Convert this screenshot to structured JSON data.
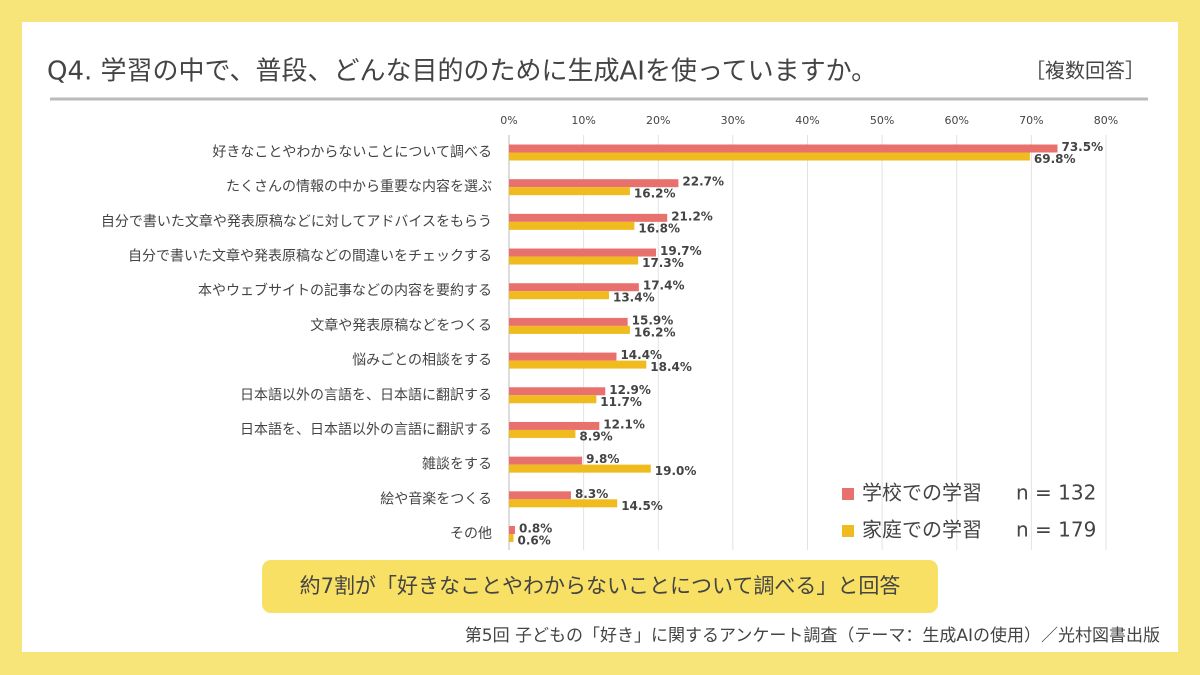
{
  "chart_data": {
    "type": "bar",
    "orientation": "horizontal",
    "title": "Q4. 学習の中で、普段、どんな目的のために生成AIを使っていますか。",
    "subtitle": "［複数回答］",
    "categories": [
      "好きなことやわからないことについて調べる",
      "たくさんの情報の中から重要な内容を選ぶ",
      "自分で書いた文章や発表原稿などに対してアドバイスをもらう",
      "自分で書いた文章や発表原稿などの間違いをチェックする",
      "本やウェブサイトの記事などの内容を要約する",
      "文章や発表原稿などをつくる",
      "悩みごとの相談をする",
      "日本語以外の言語を、日本語に翻訳する",
      "日本語を、日本語以外の言語に翻訳する",
      "雑談をする",
      "絵や音楽をつくる",
      "その他"
    ],
    "series": [
      {
        "name": "学校での学習",
        "sample_size": "n = 132",
        "color": "#e8716d",
        "values": [
          73.5,
          22.7,
          21.2,
          19.7,
          17.4,
          15.9,
          14.4,
          12.9,
          12.1,
          9.8,
          8.3,
          0.8
        ],
        "value_labels": [
          "73.5%",
          "22.7%",
          "21.2%",
          "19.7%",
          "17.4%",
          "15.9%",
          "14.4%",
          "12.9%",
          "12.1%",
          "9.8%",
          "8.3%",
          "0.8%"
        ]
      },
      {
        "name": "家庭での学習",
        "sample_size": "n = 179",
        "color": "#efbb1f",
        "values": [
          69.8,
          16.2,
          16.8,
          17.3,
          13.4,
          16.2,
          18.4,
          11.7,
          8.9,
          19.0,
          14.5,
          0.6
        ],
        "value_labels": [
          "69.8%",
          "16.2%",
          "16.8%",
          "17.3%",
          "13.4%",
          "16.2%",
          "18.4%",
          "11.7%",
          "8.9%",
          "19.0%",
          "14.5%",
          "0.6%"
        ]
      }
    ],
    "xlim": [
      0,
      80
    ],
    "xticks": [
      {
        "value": 0,
        "label": "0%"
      },
      {
        "value": 10,
        "label": "10%"
      },
      {
        "value": 20,
        "label": "20%"
      },
      {
        "value": 30,
        "label": "30%"
      },
      {
        "value": 40,
        "label": "40%"
      },
      {
        "value": 50,
        "label": "50%"
      },
      {
        "value": 60,
        "label": "60%"
      },
      {
        "value": 70,
        "label": "70%"
      },
      {
        "value": 80,
        "label": "80%"
      }
    ],
    "grid": true,
    "legend": "lower right",
    "annotation": "約7割が「好きなことやわからないことについて調べる」と回答",
    "source": "第5回 子どもの「好き」に関するアンケート調査（テーマ：生成AIの使用）／光村図書出版"
  }
}
